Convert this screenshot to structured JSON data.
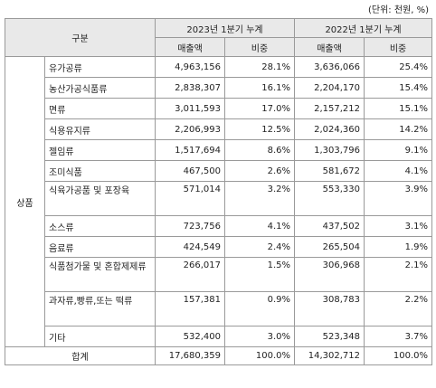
{
  "unit_note": "(단위: 천원, %)",
  "headers": {
    "category": "구분",
    "period_2023": "2023년 1분기 누계",
    "period_2022": "2022년 1분기 누계",
    "sales": "매출액",
    "ratio": "비중"
  },
  "group_label": "상품",
  "rows": [
    {
      "name": "유가공류",
      "s2023": "4,963,156",
      "r2023": "28.1%",
      "s2022": "3,636,066",
      "r2022": "25.4%"
    },
    {
      "name": "농산가공식품류",
      "s2023": "2,838,307",
      "r2023": "16.1%",
      "s2022": "2,204,170",
      "r2022": "15.4%"
    },
    {
      "name": "면류",
      "s2023": "3,011,593",
      "r2023": "17.0%",
      "s2022": "2,157,212",
      "r2022": "15.1%"
    },
    {
      "name": "식용유지류",
      "s2023": "2,206,993",
      "r2023": "12.5%",
      "s2022": "2,024,360",
      "r2022": "14.2%"
    },
    {
      "name": "젤임류",
      "s2023": "1,517,694",
      "r2023": "8.6%",
      "s2022": "1,303,796",
      "r2022": "9.1%"
    },
    {
      "name": "조미식품",
      "s2023": "467,500",
      "r2023": "2.6%",
      "s2022": "581,672",
      "r2022": "4.1%"
    },
    {
      "name": "식육가공품 및 포장육",
      "s2023": "571,014",
      "r2023": "3.2%",
      "s2022": "553,330",
      "r2022": "3.9%"
    },
    {
      "name": "소스류",
      "s2023": "723,756",
      "r2023": "4.1%",
      "s2022": "437,502",
      "r2022": "3.1%"
    },
    {
      "name": "음료류",
      "s2023": "424,549",
      "r2023": "2.4%",
      "s2022": "265,504",
      "r2022": "1.9%"
    },
    {
      "name": "식품첨가물 및 혼합제제류",
      "s2023": "266,017",
      "r2023": "1.5%",
      "s2022": "306,968",
      "r2022": "2.1%"
    },
    {
      "name": "과자류,빵류,또는 떡류",
      "s2023": "157,381",
      "r2023": "0.9%",
      "s2022": "308,783",
      "r2022": "2.2%"
    },
    {
      "name": "기타",
      "s2023": "532,400",
      "r2023": "3.0%",
      "s2022": "523,348",
      "r2022": "3.7%"
    }
  ],
  "total": {
    "label": "합계",
    "s2023": "17,680,359",
    "r2023": "100.0%",
    "s2022": "14,302,712",
    "r2022": "100.0%"
  }
}
